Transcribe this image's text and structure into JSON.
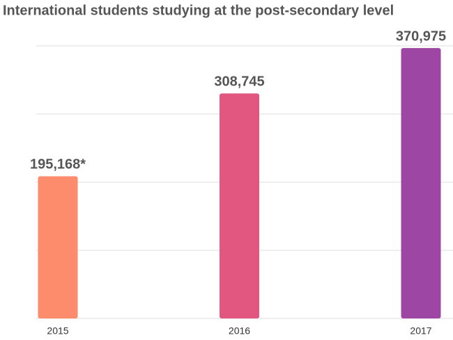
{
  "chart_data": {
    "type": "bar",
    "title": "International students studying at the post-secondary level",
    "categories": [
      "2015",
      "2016",
      "2017"
    ],
    "values": [
      195168,
      308745,
      370975
    ],
    "value_labels": [
      "195,168*",
      "308,745",
      "370,975"
    ],
    "colors": [
      "#fd8c6d",
      "#e1577f",
      "#9d46a3"
    ],
    "ylim": [
      0,
      374000
    ],
    "yticks": [
      0,
      93500,
      187000,
      280500,
      374000
    ],
    "grid": true
  }
}
